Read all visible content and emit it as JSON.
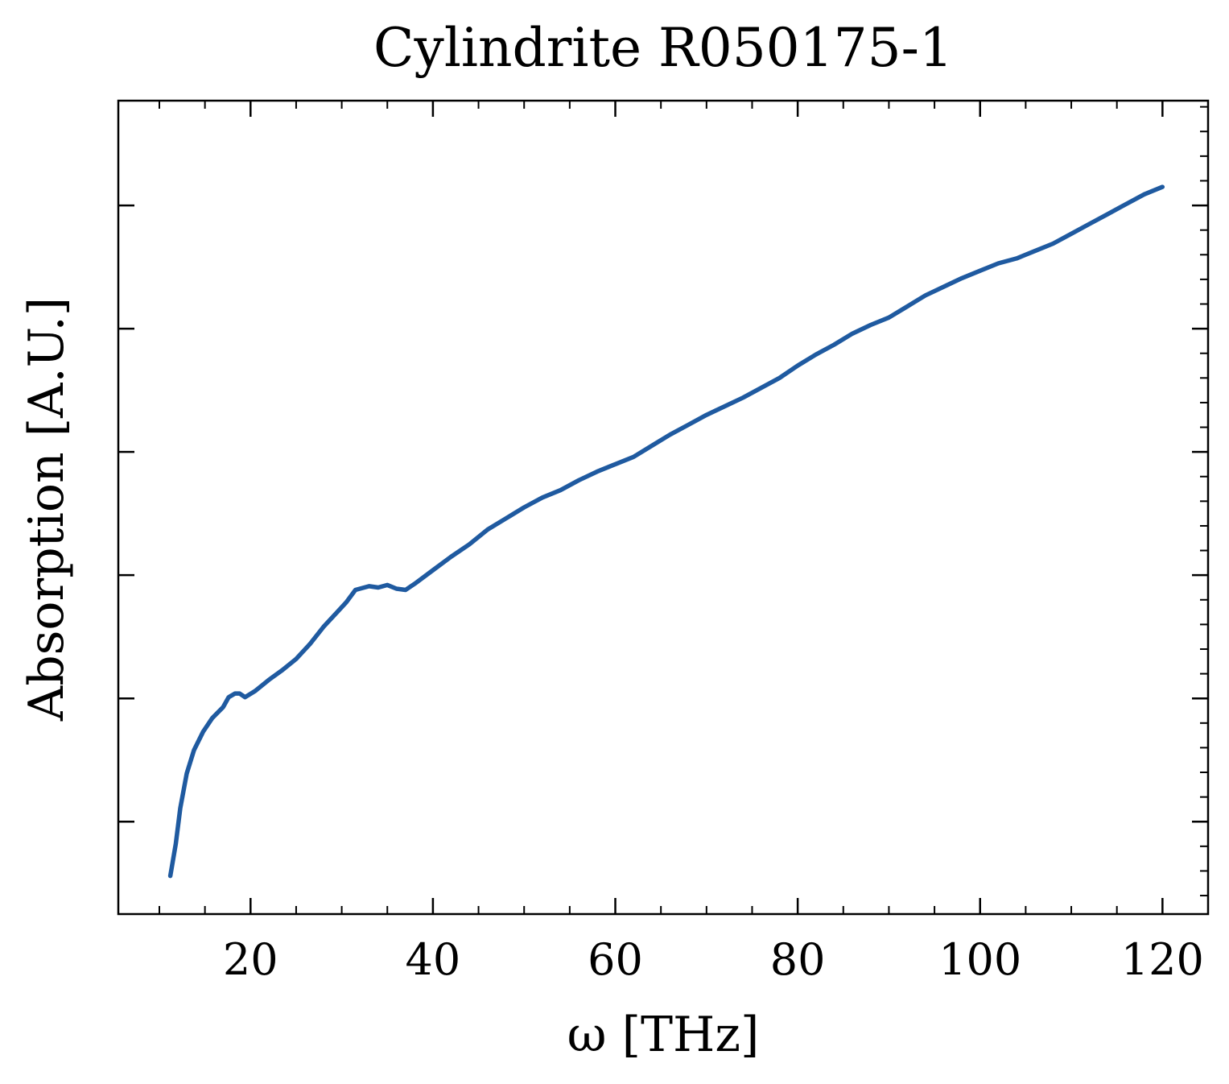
{
  "chart_data": {
    "type": "line",
    "title": "Cylindrite R050175-1",
    "xlabel": "ω [THz]",
    "ylabel": "Absorption [A.U.]",
    "xlim": [
      5.5,
      125
    ],
    "ylim": [
      0,
      6.6
    ],
    "x_ticks": [
      20,
      40,
      60,
      80,
      100,
      120
    ],
    "x_tick_labels": [
      "20",
      "40",
      "60",
      "80",
      "100",
      "120"
    ],
    "y_ticks": [
      0.75,
      1.75,
      2.75,
      3.75,
      4.75,
      5.75
    ],
    "y_tick_labels": [],
    "grid": false,
    "legend": "none",
    "colors": {
      "series": "#1f5aa0",
      "axes": "#000000",
      "background": "#ffffff"
    },
    "series": [
      {
        "x": [
          11.2,
          11.8,
          12.3,
          13,
          13.8,
          14.8,
          15.8,
          17,
          17.6,
          18.3,
          18.8,
          19.4,
          20.5,
          22,
          23.5,
          25,
          26.5,
          28,
          29.5,
          30.5,
          31.5,
          33,
          34,
          35,
          36,
          37,
          38,
          40,
          42,
          44,
          46,
          48,
          50,
          52,
          54,
          56,
          58,
          60,
          62,
          64,
          66,
          68,
          70,
          72,
          74,
          76,
          78,
          80,
          82,
          84,
          86,
          88,
          90,
          92,
          94,
          96,
          98,
          100,
          102,
          104,
          106,
          108,
          110,
          112,
          114,
          116,
          118,
          120
        ],
        "values": [
          0.31,
          0.57,
          0.86,
          1.14,
          1.33,
          1.48,
          1.59,
          1.68,
          1.76,
          1.79,
          1.79,
          1.76,
          1.81,
          1.9,
          1.98,
          2.07,
          2.19,
          2.33,
          2.45,
          2.53,
          2.63,
          2.66,
          2.65,
          2.67,
          2.64,
          2.63,
          2.68,
          2.79,
          2.9,
          3.0,
          3.12,
          3.21,
          3.3,
          3.38,
          3.44,
          3.52,
          3.59,
          3.65,
          3.71,
          3.8,
          3.89,
          3.97,
          4.05,
          4.12,
          4.19,
          4.27,
          4.35,
          4.45,
          4.54,
          4.62,
          4.71,
          4.78,
          4.84,
          4.93,
          5.02,
          5.09,
          5.16,
          5.22,
          5.28,
          5.32,
          5.38,
          5.44,
          5.52,
          5.6,
          5.68,
          5.76,
          5.84,
          5.9
        ]
      }
    ]
  }
}
